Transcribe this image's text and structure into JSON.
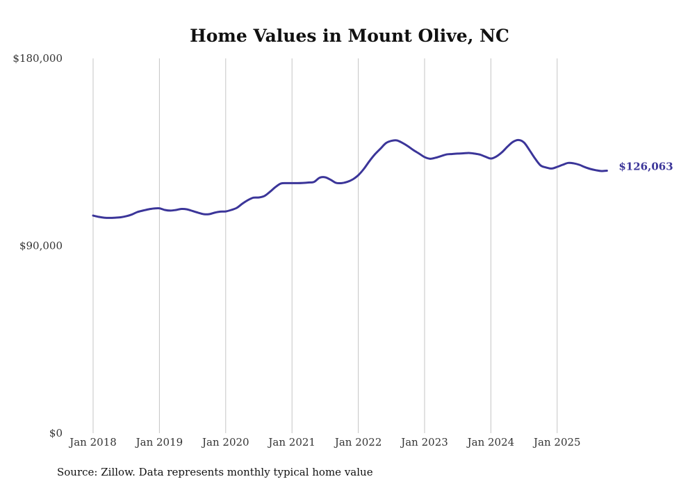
{
  "chart_data": {
    "type": "line",
    "title": "Home Values in Mount Olive, NC",
    "xlabel": "",
    "ylabel": "",
    "ylim": [
      0,
      180000
    ],
    "y_ticks": [
      {
        "value": 0,
        "label": "$0"
      },
      {
        "value": 90000,
        "label": "$90,000"
      },
      {
        "value": 180000,
        "label": "$180,000"
      }
    ],
    "x_ticks": [
      {
        "year": 2018,
        "label": "Jan 2018"
      },
      {
        "year": 2019,
        "label": "Jan 2019"
      },
      {
        "year": 2020,
        "label": "Jan 2020"
      },
      {
        "year": 2021,
        "label": "Jan 2021"
      },
      {
        "year": 2022,
        "label": "Jan 2022"
      },
      {
        "year": 2023,
        "label": "Jan 2023"
      },
      {
        "year": 2024,
        "label": "Jan 2024"
      },
      {
        "year": 2025,
        "label": "Jan 2025"
      }
    ],
    "grid": "vertical at each January",
    "start": "2018-01",
    "frequency": "monthly",
    "series": [
      {
        "name": "Typical home value",
        "color": "#3b3599",
        "values": [
          104500,
          103900,
          103500,
          103400,
          103500,
          103700,
          104200,
          105000,
          106200,
          106900,
          107500,
          107900,
          108000,
          107200,
          106900,
          107200,
          107700,
          107500,
          106700,
          105900,
          105200,
          105200,
          105900,
          106400,
          106500,
          107200,
          108200,
          110200,
          111900,
          113100,
          113200,
          113900,
          115900,
          118200,
          119900,
          120100,
          120100,
          120100,
          120200,
          120400,
          120700,
          122700,
          122900,
          121700,
          120200,
          120100,
          120700,
          121900,
          123900,
          126900,
          130600,
          133900,
          136600,
          139300,
          140400,
          140600,
          139400,
          137800,
          135900,
          134300,
          132600,
          131800,
          132300,
          133100,
          133900,
          134100,
          134300,
          134400,
          134600,
          134300,
          133800,
          132800,
          131900,
          132900,
          134900,
          137600,
          139900,
          140800,
          139600,
          135900,
          131900,
          128600,
          127600,
          127100,
          127900,
          128900,
          129800,
          129600,
          128900,
          127800,
          126900,
          126300,
          125900,
          126063
        ]
      }
    ],
    "end_label": "$126,063",
    "source": "Source: Zillow. Data represents monthly typical home value"
  }
}
